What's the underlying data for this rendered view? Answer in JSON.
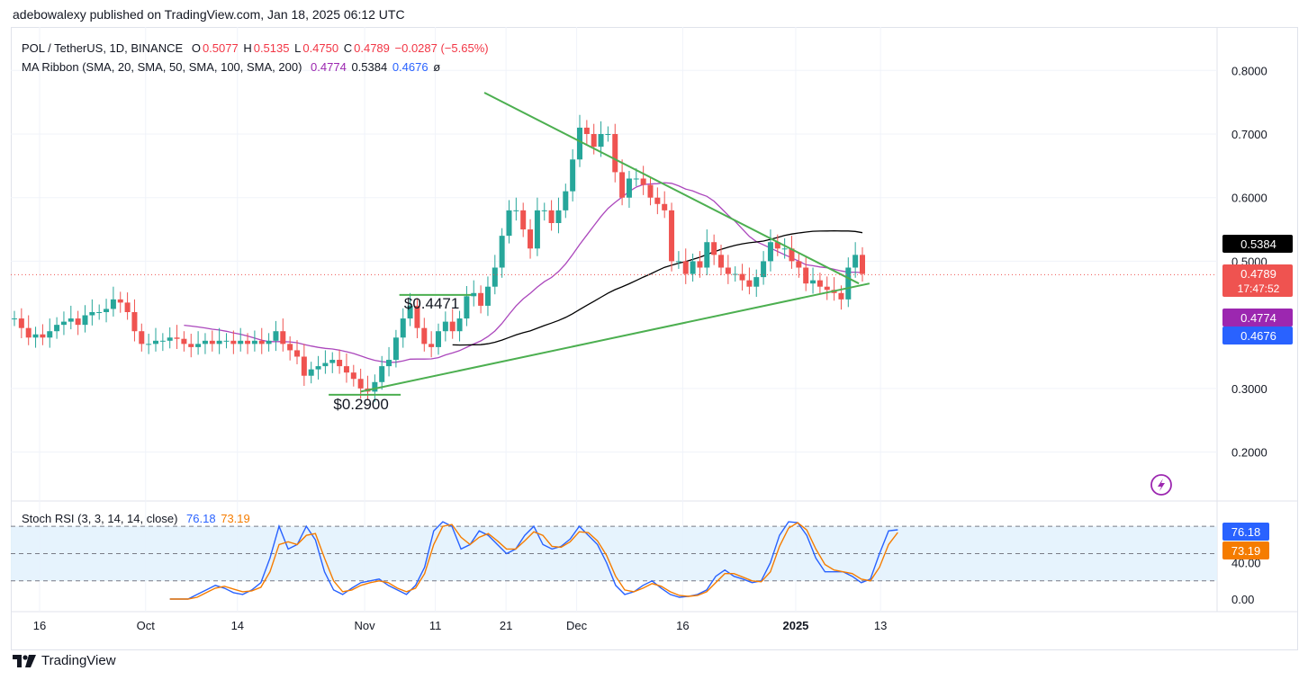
{
  "header": {
    "published": "adebowalexy published on TradingView.com, Jan 18, 2025 06:12 UTC"
  },
  "legend": {
    "symbol": "POL / TetherUS, 1D, BINANCE",
    "o_label": "O",
    "o": "0.5077",
    "h_label": "H",
    "h": "0.5135",
    "l_label": "L",
    "l": "0.4750",
    "c_label": "C",
    "c": "0.4789",
    "change": "−0.0287 (−5.65%)",
    "ma_label": "MA Ribbon (SMA, 20, SMA, 50, SMA, 100, SMA, 200)",
    "ma20": "0.4774",
    "ma50": "0.5384",
    "ma100": "0.4676",
    "ma200": "ø"
  },
  "stoch_legend": {
    "label": "Stoch RSI (3, 3, 14, 14, close)",
    "k": "76.18",
    "d": "73.19"
  },
  "footer": {
    "brand": "TradingView"
  },
  "colors": {
    "up": "#26a69a",
    "down": "#ef5350",
    "ma20": "#ab47bc",
    "ma50": "#000000",
    "ma100": "#2962ff",
    "trend": "#4caf50",
    "k": "#2962ff",
    "d": "#f57c00"
  },
  "chart_data": [
    {
      "type": "candlestick",
      "title": "POL / TetherUS, 1D, BINANCE",
      "ylim": [
        0.14,
        0.84
      ],
      "y_ticks": [
        "0.8000",
        "0.7000",
        "0.6000",
        "0.5000",
        "0.3000",
        "0.2000"
      ],
      "x_ticks": [
        "16",
        "Oct",
        "14",
        "Nov",
        "11",
        "21",
        "Dec",
        "16",
        "2025",
        "13"
      ],
      "x_tick_days": [
        0,
        15,
        28,
        46,
        56,
        66,
        76,
        91,
        107,
        119
      ],
      "price_labels": [
        {
          "text": "0.5384",
          "value": 0.5384,
          "color": "#000000"
        },
        {
          "text": "0.4789",
          "sub": "17:47:52",
          "value": 0.4789,
          "color": "#ef5350"
        },
        {
          "text": "0.4774",
          "value": 0.4774,
          "color": "#9c27b0"
        },
        {
          "text": "0.4676",
          "value": 0.4676,
          "color": "#2962ff"
        }
      ],
      "annotations": [
        {
          "text": "$0.4471",
          "day": 56,
          "value": 0.4471
        },
        {
          "text": "$0.2900",
          "day": 46,
          "value": 0.29
        }
      ],
      "trendlines": [
        {
          "from": [
            66.5,
            0.765
          ],
          "to": [
            119.5,
            0.465
          ]
        },
        {
          "from": [
            49,
            0.295
          ],
          "to": [
            121,
            0.465
          ]
        }
      ],
      "close": [
        0.41,
        0.395,
        0.38,
        0.385,
        0.38,
        0.39,
        0.4,
        0.405,
        0.41,
        0.4,
        0.415,
        0.42,
        0.42,
        0.425,
        0.44,
        0.435,
        0.42,
        0.39,
        0.37,
        0.37,
        0.375,
        0.375,
        0.38,
        0.378,
        0.37,
        0.365,
        0.37,
        0.375,
        0.37,
        0.375,
        0.375,
        0.37,
        0.375,
        0.37,
        0.375,
        0.37,
        0.375,
        0.39,
        0.37,
        0.36,
        0.35,
        0.32,
        0.33,
        0.335,
        0.34,
        0.345,
        0.335,
        0.325,
        0.315,
        0.3,
        0.295,
        0.31,
        0.335,
        0.345,
        0.38,
        0.41,
        0.43,
        0.395,
        0.37,
        0.365,
        0.39,
        0.405,
        0.39,
        0.41,
        0.445,
        0.45,
        0.43,
        0.46,
        0.49,
        0.54,
        0.58,
        0.58,
        0.55,
        0.52,
        0.58,
        0.58,
        0.56,
        0.58,
        0.61,
        0.66,
        0.71,
        0.7,
        0.68,
        0.7,
        0.7,
        0.64,
        0.6,
        0.63,
        0.63,
        0.62,
        0.6,
        0.59,
        0.58,
        0.5,
        0.5,
        0.48,
        0.5,
        0.49,
        0.53,
        0.51,
        0.49,
        0.48,
        0.48,
        0.47,
        0.46,
        0.475,
        0.5,
        0.53,
        0.52,
        0.52,
        0.5,
        0.49,
        0.465,
        0.47,
        0.46,
        0.455,
        0.45,
        0.44,
        0.49,
        0.51,
        0.48
      ]
    },
    {
      "type": "line",
      "title": "Stoch RSI (3, 3, 14, 14, close)",
      "ylim": [
        0,
        100
      ],
      "y_ticks": [
        "40.00",
        "0.00"
      ],
      "series": [
        {
          "name": "76.18",
          "values": [
            0,
            0,
            0,
            5,
            10,
            15,
            12,
            7,
            5,
            10,
            18,
            45,
            80,
            55,
            60,
            80,
            65,
            30,
            10,
            5,
            12,
            18,
            20,
            22,
            15,
            10,
            5,
            15,
            35,
            75,
            85,
            80,
            55,
            60,
            75,
            70,
            60,
            50,
            55,
            70,
            80,
            60,
            55,
            58,
            66,
            80,
            70,
            60,
            40,
            15,
            5,
            8,
            15,
            20,
            12,
            5,
            2,
            3,
            5,
            10,
            25,
            32,
            25,
            22,
            18,
            20,
            40,
            70,
            85,
            84,
            70,
            45,
            30,
            30,
            30,
            25,
            18,
            22,
            50,
            75,
            76.18
          ]
        },
        {
          "name": "73.19",
          "values": [
            0,
            0,
            0,
            2,
            7,
            12,
            14,
            11,
            8,
            9,
            13,
            30,
            60,
            63,
            60,
            70,
            72,
            45,
            20,
            8,
            10,
            15,
            18,
            20,
            18,
            12,
            8,
            12,
            28,
            60,
            80,
            82,
            68,
            60,
            68,
            72,
            64,
            55,
            55,
            64,
            74,
            70,
            58,
            57,
            63,
            74,
            73,
            64,
            48,
            25,
            10,
            8,
            12,
            17,
            14,
            8,
            4,
            3,
            4,
            8,
            18,
            28,
            28,
            24,
            20,
            19,
            30,
            58,
            78,
            84,
            76,
            55,
            38,
            32,
            30,
            28,
            22,
            20,
            35,
            60,
            73.19
          ]
        }
      ]
    }
  ]
}
